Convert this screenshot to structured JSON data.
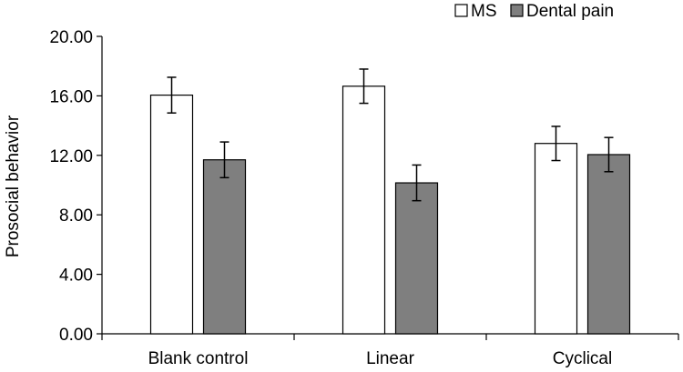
{
  "chart_data": {
    "type": "bar",
    "title": "",
    "xlabel": "",
    "ylabel": "Prosocial behavior",
    "ylim": [
      0,
      20
    ],
    "yticks": [
      "0.00",
      "4.00",
      "8.00",
      "12.00",
      "16.00",
      "20.00"
    ],
    "ytick_values": [
      0,
      4,
      8,
      12,
      16,
      20
    ],
    "categories": [
      "Blank control",
      "Linear",
      "Cyclical"
    ],
    "series": [
      {
        "name": "MS",
        "values": [
          16.05,
          16.65,
          12.8
        ],
        "errors": [
          1.2,
          1.15,
          1.15
        ],
        "fill": "#ffffff",
        "stroke": "#000000"
      },
      {
        "name": "Dental pain",
        "values": [
          11.7,
          10.15,
          12.05
        ],
        "errors": [
          1.2,
          1.2,
          1.15
        ],
        "fill": "#7f7f7f",
        "stroke": "#000000"
      }
    ],
    "legend_position": "top-right",
    "grid": false
  }
}
